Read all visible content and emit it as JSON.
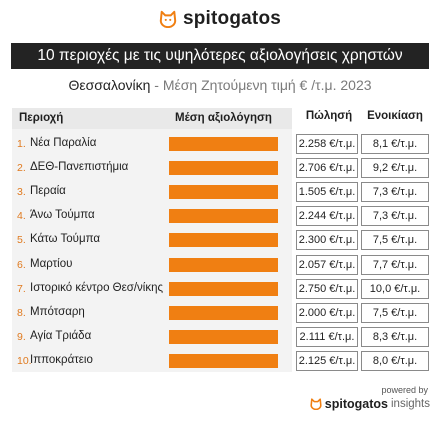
{
  "brand": {
    "name": "spitogatos",
    "accent": "#f07f12"
  },
  "title": "10 περιοχές με τις υψηλότερες αξιολογήσεις χρηστών",
  "subtitle": {
    "city": "Θεσσαλονίκη",
    "rest": " - Μέση Ζητούμενη τιμή € /τ.μ. 2023"
  },
  "headers": {
    "region": "Περιοχή",
    "rating": "Μέση αξιολόγηση",
    "sale": "Πώλησή",
    "rent": "Ενοικίαση"
  },
  "footer": {
    "powered": "powered by",
    "brand": "spitogatos",
    "suffix": "insights"
  },
  "chart_data": {
    "type": "bar",
    "orientation": "horizontal",
    "title": "10 περιοχές με τις υψηλότερες αξιολογήσεις χρηστών",
    "categories": [
      "Νέα Παραλία",
      "ΔΕΘ-Πανεπιστήμια",
      "Περαία",
      "Άνω Τούμπα",
      "Κάτω Τούμπα",
      "Μαρτίου",
      "Ιστορικό κέντρο Θεσ/νίκης",
      "Μπότσαρη",
      "Αγία Τριάδα",
      "Ιπποκράτειο"
    ],
    "ranks": [
      "1.",
      "2.",
      "3.",
      "4.",
      "5.",
      "6.",
      "7.",
      "8.",
      "9.",
      "10."
    ],
    "rating_values": [
      1.0,
      1.0,
      1.0,
      1.0,
      1.0,
      1.0,
      1.0,
      1.0,
      1.0,
      1.0
    ],
    "sale": [
      "2.258 €/τ.μ.",
      "2.706 €/τ.μ.",
      "1.505 €/τ.μ.",
      "2.244 €/τ.μ.",
      "2.300 €/τ.μ.",
      "2.057 €/τ.μ.",
      "2.750 €/τ.μ.",
      "2.000 €/τ.μ.",
      "2.111 €/τ.μ.",
      "2.125 €/τ.μ."
    ],
    "rent": [
      "8,1 €/τ.μ.",
      "9,2 €/τ.μ.",
      "7,3 €/τ.μ.",
      "7,3 €/τ.μ.",
      "7,5 €/τ.μ.",
      "7,7 €/τ.μ.",
      "10,0 €/τ.μ.",
      "7,5 €/τ.μ.",
      "8,3 €/τ.μ.",
      "8,0 €/τ.μ."
    ],
    "bar_color": "#f07f12",
    "grid": false,
    "legend": "none"
  }
}
